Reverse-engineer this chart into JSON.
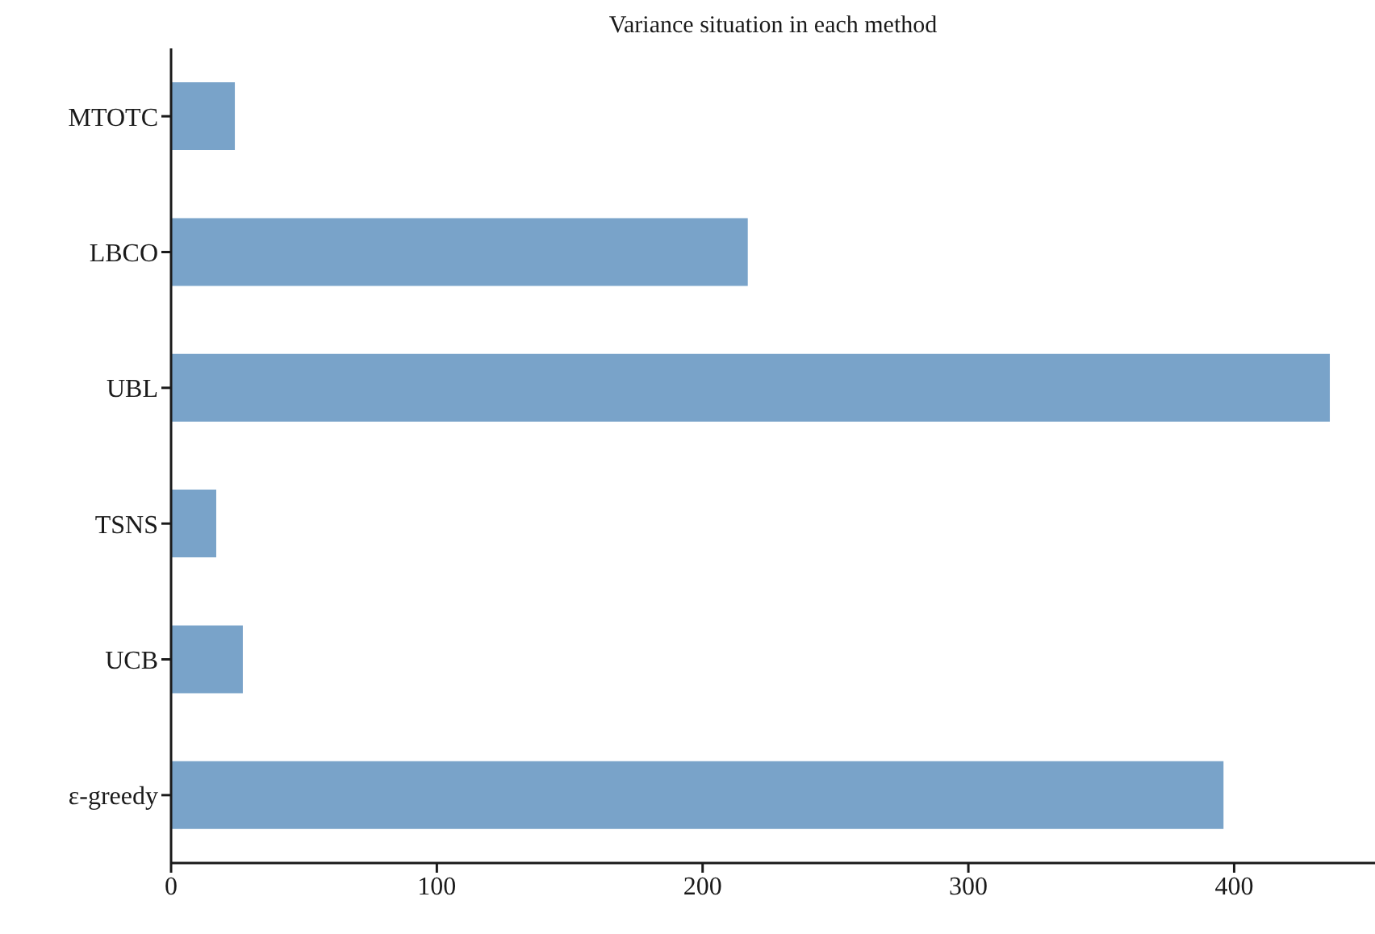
{
  "chart_data": {
    "type": "bar",
    "orientation": "horizontal",
    "title": "Variance situation in each method",
    "categories": [
      "MTOTC",
      "LBCO",
      "UBL",
      "TSNS",
      "UCB",
      "ε-greedy"
    ],
    "values": [
      24,
      217,
      436,
      17,
      27,
      396
    ],
    "color": "#79a3c9",
    "xlim": [
      0,
      453
    ],
    "xticks": [
      0,
      100,
      200,
      300,
      400
    ]
  }
}
